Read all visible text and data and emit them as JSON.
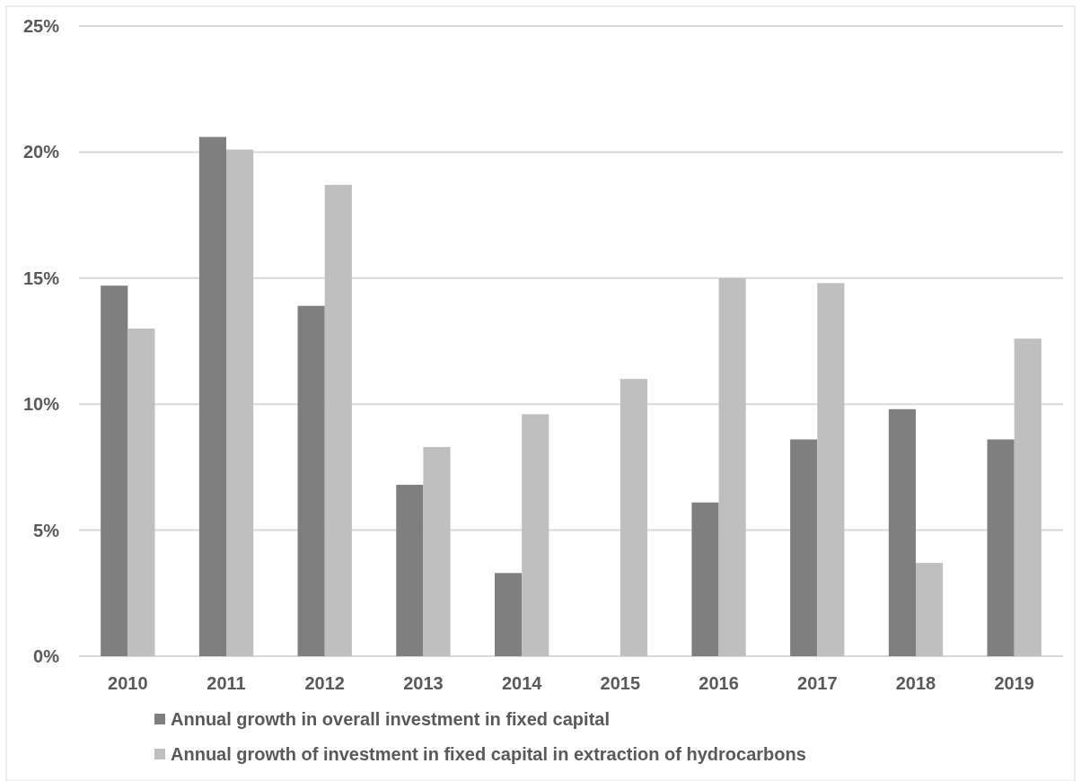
{
  "chart_data": {
    "type": "bar",
    "categories": [
      "2010",
      "2011",
      "2012",
      "2013",
      "2014",
      "2015",
      "2016",
      "2017",
      "2018",
      "2019"
    ],
    "series": [
      {
        "name": "Annual growth in overall investment in fixed capital",
        "color": "#7f7f7f",
        "values": [
          14.7,
          20.6,
          13.9,
          6.8,
          3.3,
          null,
          6.1,
          8.6,
          9.8,
          8.6
        ]
      },
      {
        "name": "Annual growth of investment in fixed capital in extraction of hydrocarbons",
        "color": "#bfbfbf",
        "values": [
          13.0,
          20.1,
          18.7,
          8.3,
          9.6,
          11.0,
          15.0,
          14.8,
          3.7,
          12.6
        ]
      }
    ],
    "ylim": [
      0,
      25
    ],
    "yticks": [
      {
        "value": 0,
        "label": "0%"
      },
      {
        "value": 5,
        "label": "5%"
      },
      {
        "value": 10,
        "label": "10%"
      },
      {
        "value": 15,
        "label": "15%"
      },
      {
        "value": 20,
        "label": "20%"
      },
      {
        "value": 25,
        "label": "25%"
      }
    ],
    "grid": "y",
    "legend": "bottom"
  }
}
